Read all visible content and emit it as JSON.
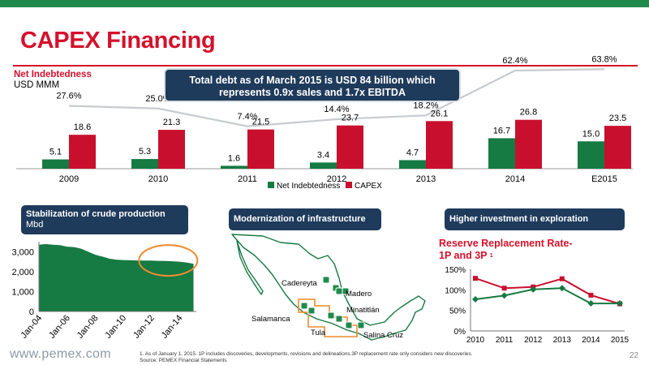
{
  "page": {
    "title": "CAPEX Financing",
    "footer_url": "www.pemex.com",
    "page_number": "22",
    "footnotes": [
      "1.   As of January 1, 2015. 1P includes discoveries, developments, revisions and delineations.3P replacement rate only considers new discoveries.",
      "Source: PEMEX Financial Statements"
    ],
    "colors": {
      "green": "#167a43",
      "red": "#c8102e",
      "navy": "#1f3b5c",
      "orange": "#ea8b2f"
    }
  },
  "callout": {
    "line1": "Total debt as of March 2015 is USD 84 billion which",
    "line2": "represents 0.9x sales and 1.7x EBITDA"
  },
  "panels": {
    "left_header": "Stabilization of crude production",
    "left_unit": "Mbd",
    "mid_header": "Modernization of infrastructure",
    "right_header": "Higher investment in exploration"
  },
  "map": {
    "labels": [
      "Cadereyta",
      "Madero",
      "Salamanca",
      "Minatitlán",
      "Tula",
      "Salina Cruz"
    ]
  },
  "chart_data": [
    {
      "type": "bar",
      "title": "Net Indebtedness",
      "unit": "USD MMM",
      "categories": [
        "2009",
        "2010",
        "2011",
        "2012",
        "2013",
        "2014",
        "E2015"
      ],
      "series": [
        {
          "name": "Net Indebtedness",
          "color": "#167a43",
          "values": [
            5.1,
            5.3,
            1.6,
            3.4,
            4.7,
            16.7,
            15.0
          ],
          "labels": [
            "5.1",
            "5.3",
            "1.6",
            "3.4",
            "4.7",
            "16.7",
            "15.0"
          ]
        },
        {
          "name": "CAPEX",
          "color": "#c8102e",
          "values": [
            18.6,
            21.3,
            21.5,
            23.7,
            26.1,
            26.8,
            23.5
          ],
          "labels": [
            "18.6",
            "21.3",
            "21.5",
            "23.7",
            "26.1",
            "26.8",
            "23.5"
          ]
        }
      ],
      "ratio_line": {
        "values": [
          27.6,
          25.0,
          7.4,
          14.4,
          18.2,
          62.4,
          63.8
        ],
        "labels": [
          "27.6%",
          "25.0%",
          "7.4%",
          "14.4%",
          "18.2%",
          "62.4%",
          "63.8%"
        ],
        "color": "#c8cbce"
      },
      "legend": "bottom-center"
    },
    {
      "type": "area",
      "title": "Stabilization of crude production",
      "unit": "Mbd",
      "x_ticks": [
        "Jan-04",
        "Jan-06",
        "Jan-08",
        "Jan-10",
        "Jan-12",
        "Jan-14"
      ],
      "y_ticks": [
        "0",
        "1,000",
        "2,000",
        "3,000"
      ],
      "ylim": [
        0,
        3500
      ],
      "x": [
        2004.0,
        2004.5,
        2005.0,
        2005.5,
        2006.0,
        2006.5,
        2007.0,
        2007.5,
        2008.0,
        2008.5,
        2009.0,
        2009.5,
        2010.0,
        2010.5,
        2011.0,
        2011.5,
        2012.0,
        2012.5,
        2013.0,
        2013.5,
        2014.0,
        2014.5,
        2015.0
      ],
      "values": [
        3350,
        3380,
        3350,
        3330,
        3250,
        3230,
        3150,
        3000,
        2850,
        2760,
        2650,
        2600,
        2580,
        2570,
        2560,
        2550,
        2550,
        2540,
        2530,
        2520,
        2500,
        2460,
        2390
      ],
      "color": "#167a43",
      "highlight": "ellipse around Jan-11 to Jan-15"
    },
    {
      "type": "line",
      "title": "Reserve Replacement Rate-1P and 3P",
      "title_line1": "Reserve Replacement Rate-",
      "title_line2": "1P and 3P",
      "title_sup": "1",
      "categories": [
        "2010",
        "2011",
        "2012",
        "2013",
        "2014",
        "2015"
      ],
      "y_ticks": [
        "0%",
        "50%",
        "100%",
        "150%"
      ],
      "ylim": [
        0,
        150
      ],
      "series": [
        {
          "marker": "square",
          "color": "#c8102e",
          "values": [
            128,
            104,
            107,
            127,
            87,
            66
          ]
        },
        {
          "marker": "diamond",
          "color": "#167a43",
          "values": [
            77,
            86,
            101,
            104,
            67,
            67
          ]
        }
      ]
    }
  ]
}
